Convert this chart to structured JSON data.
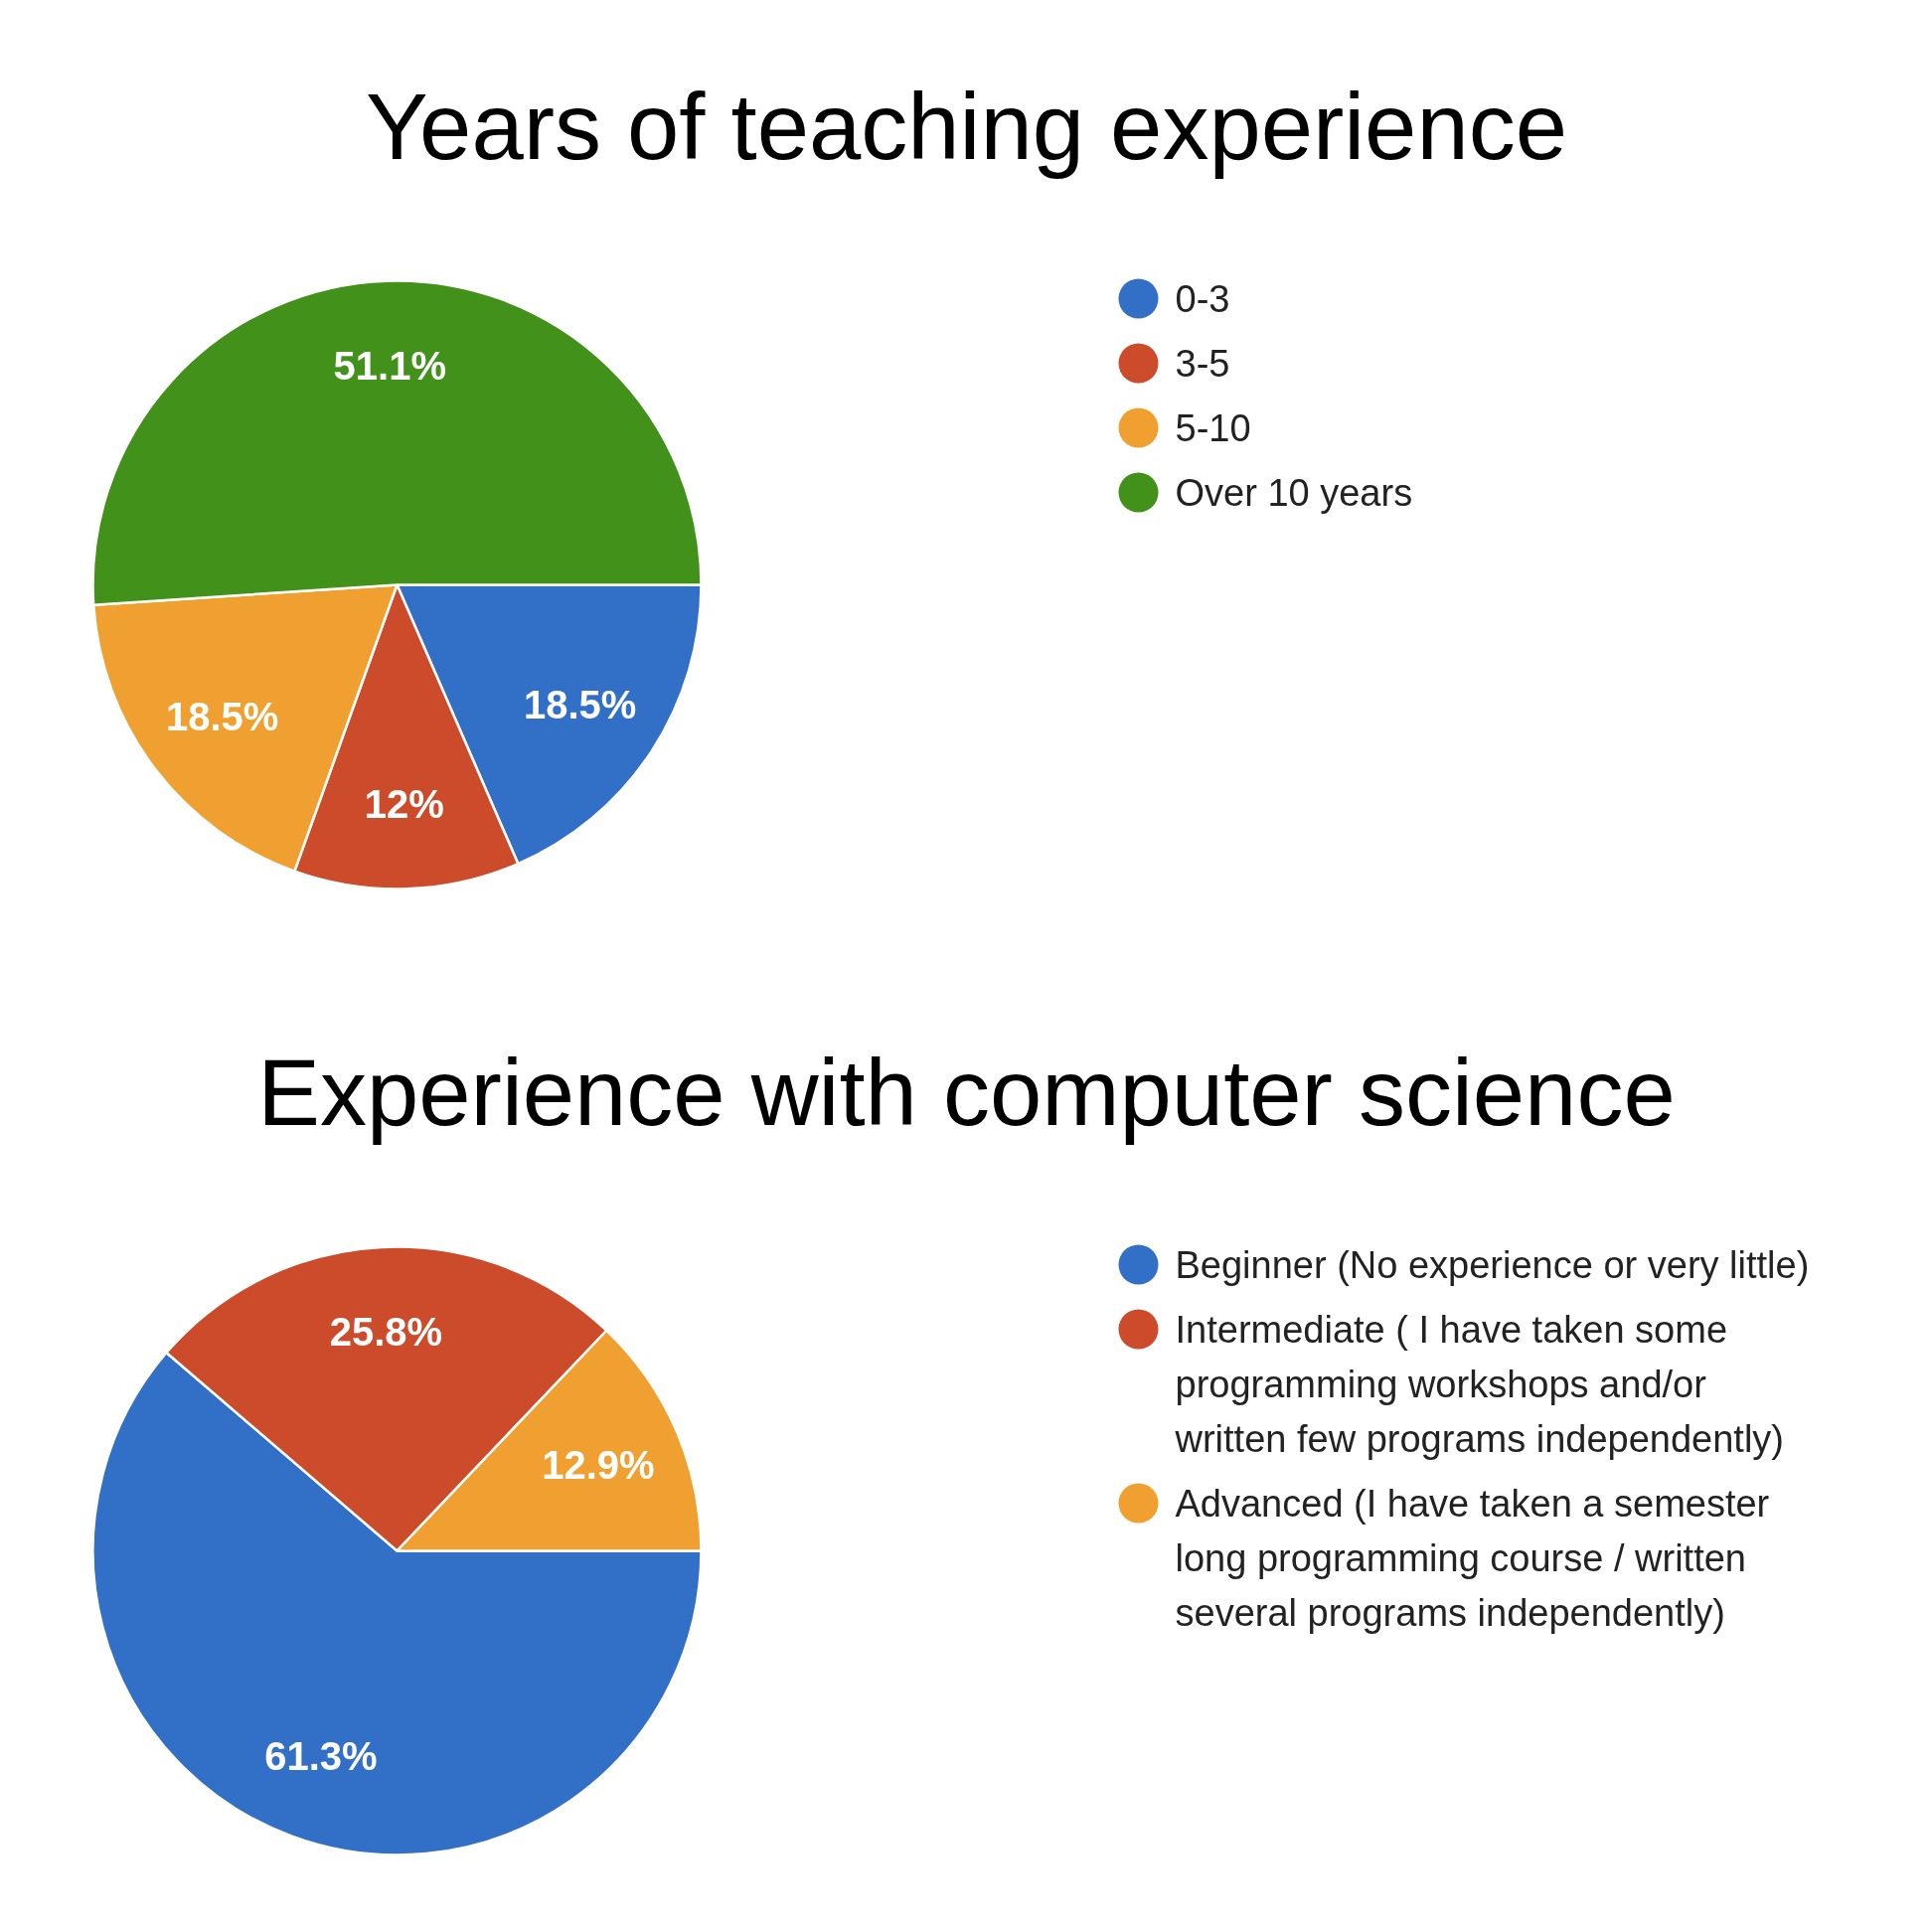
{
  "chart_data": [
    {
      "type": "pie",
      "title": "Years of teaching experience",
      "categories": [
        "0-3",
        "3-5",
        "5-10",
        "Over 10 years"
      ],
      "values": [
        18.5,
        12,
        18.5,
        51.1
      ],
      "value_labels": [
        "18.5%",
        "12%",
        "18.5%",
        "51.1%"
      ],
      "colors": [
        "#3270c8",
        "#cc4b2a",
        "#f0a030",
        "#41911a"
      ],
      "legend": "right"
    },
    {
      "type": "pie",
      "title": "Experience with computer science",
      "categories": [
        "Beginner (No experience or very little)",
        "Intermediate ( I have taken some programming workshops and/or written few programs independently)",
        "Advanced (I have taken a semester long programming course / written several programs independently)"
      ],
      "values": [
        61.3,
        25.8,
        12.9
      ],
      "value_labels": [
        "61.3%",
        "25.8%",
        "12.9%"
      ],
      "colors": [
        "#3270c8",
        "#cc4b2a",
        "#f0a030"
      ],
      "legend": "right"
    }
  ]
}
